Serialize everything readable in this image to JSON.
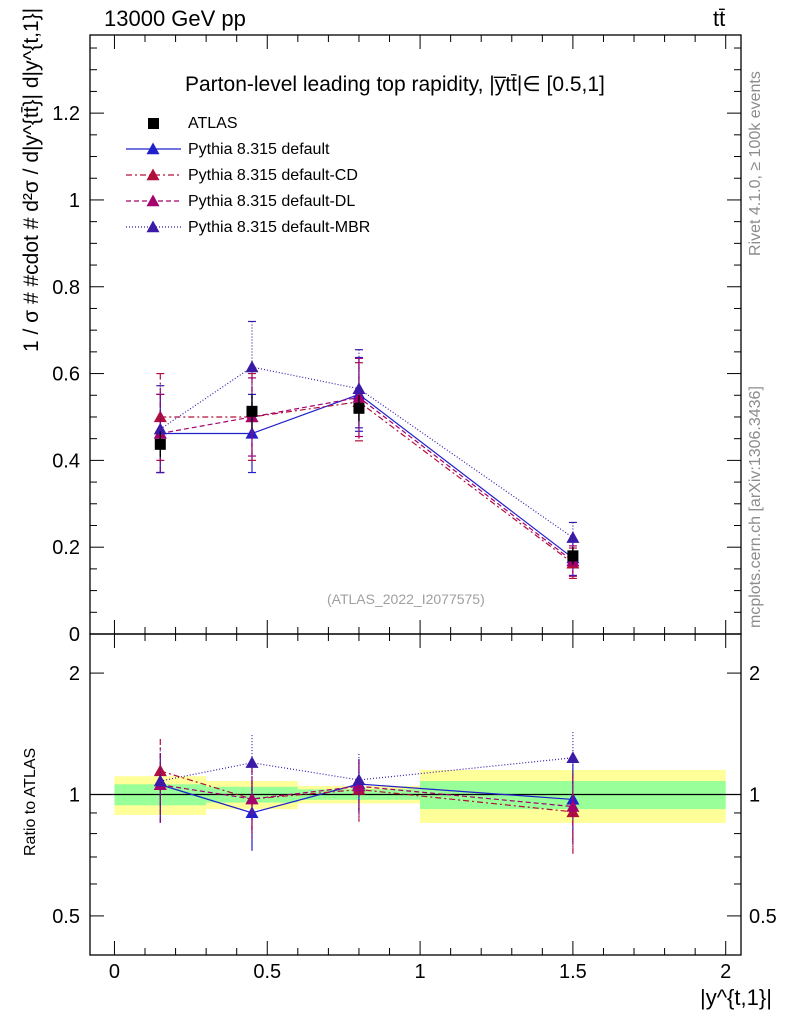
{
  "header": {
    "left": "13000 GeV pp",
    "right": "tt̄"
  },
  "side_text": {
    "rivet": "Rivet 4.1.0, ≥ 100k events",
    "mcplots": "mcplots.cern.ch [arXiv:1306.3436]"
  },
  "chart_data": {
    "type": "scatter",
    "title": "Parton-level leading top rapidity, |y̅tt̄|∈ [0.5,1]",
    "reference": "(ATLAS_2022_I2077575)",
    "xlabel": "|y^{t,1}|",
    "ylabel": "1 / σ # #cdot # d²σ / d|y^{tt̄}| d|y^{t,1}|",
    "ratio_ylabel": "Ratio to ATLAS",
    "xlim": [
      -0.08,
      2.05
    ],
    "ylim": [
      0,
      1.38
    ],
    "ratio_ylim": [
      0.4,
      2.5
    ],
    "x_ticks": [
      "0",
      "0.5",
      "1",
      "1.5",
      "2"
    ],
    "y_ticks": [
      "0",
      "0.2",
      "0.4",
      "0.6",
      "0.8",
      "1",
      "1.2"
    ],
    "ratio_ticks": [
      "0.5",
      "1",
      "2"
    ],
    "bins": [
      [
        0,
        0.3
      ],
      [
        0.3,
        0.6
      ],
      [
        0.6,
        1.0
      ],
      [
        1.0,
        2.0
      ]
    ],
    "x": [
      0.15,
      0.45,
      0.8,
      1.5
    ],
    "data": {
      "name": "ATLAS",
      "values": [
        0.437,
        0.513,
        0.52,
        0.18
      ],
      "errors": [
        0.03,
        0.04,
        0.03,
        0.02
      ],
      "band_inner": [
        0.06,
        0.045,
        0.03,
        0.08
      ],
      "band_outer": [
        0.11,
        0.08,
        0.05,
        0.15
      ]
    },
    "series": [
      {
        "name": "Pythia 8.315 default",
        "color": "#2020cc",
        "dash": "",
        "values": [
          0.462,
          0.462,
          0.552,
          0.175
        ],
        "errors": [
          0.09,
          0.09,
          0.085,
          0.04
        ]
      },
      {
        "name": "Pythia 8.315 default-CD",
        "color": "#b0103a",
        "dash": "6,3,2,3",
        "values": [
          0.5,
          0.5,
          0.535,
          0.163
        ],
        "errors": [
          0.1,
          0.1,
          0.09,
          0.035
        ]
      },
      {
        "name": "Pythia 8.315 default-DL",
        "color": "#a5006e",
        "dash": "5,3",
        "values": [
          0.462,
          0.5,
          0.545,
          0.168
        ],
        "errors": [
          0.09,
          0.09,
          0.09,
          0.035
        ]
      },
      {
        "name": "Pythia 8.315 default-MBR",
        "color": "#3c1aa8",
        "dash": "1,2",
        "values": [
          0.472,
          0.615,
          0.565,
          0.222
        ],
        "errors": [
          0.1,
          0.105,
          0.09,
          0.035
        ]
      }
    ]
  }
}
